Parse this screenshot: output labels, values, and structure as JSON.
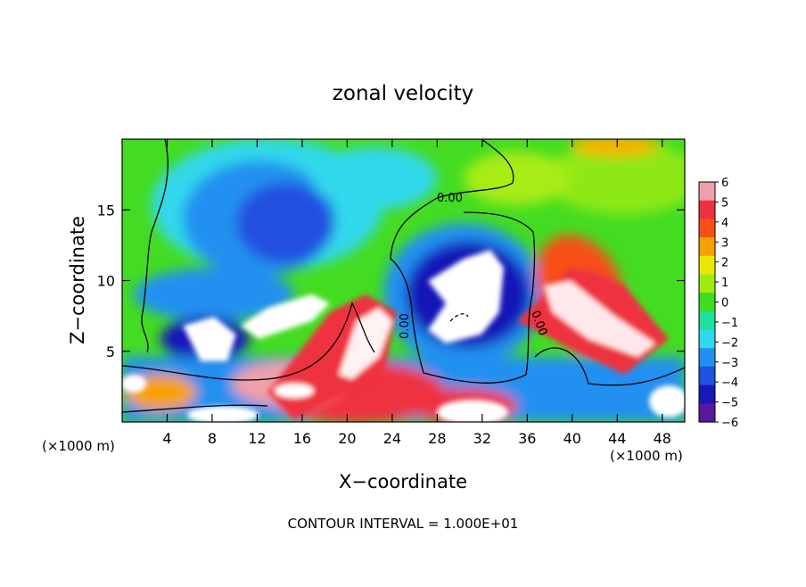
{
  "chart_data": {
    "type": "heatmap",
    "title": "zonal velocity",
    "xlabel": "X−coordinate",
    "ylabel": "Z−coordinate",
    "x_unit_note_left": "(×1000 m)",
    "x_unit_note_right": "(×1000 m)",
    "footer": "CONTOUR INTERVAL = 1.000E+01",
    "contour_label": "0.00",
    "xlim": [
      0,
      50
    ],
    "ylim": [
      0,
      20
    ],
    "x_ticks": [
      4,
      8,
      12,
      16,
      20,
      24,
      28,
      32,
      36,
      40,
      44,
      48
    ],
    "x_tick_labels": [
      "4",
      "8",
      "12",
      "16",
      "20",
      "24",
      "28",
      "32",
      "36",
      "40",
      "44",
      "48"
    ],
    "y_ticks": [
      5,
      10,
      15
    ],
    "y_tick_labels": [
      "5",
      "10",
      "15"
    ],
    "colorbar": {
      "min": -6,
      "max": 6,
      "labels": [
        "6",
        "5",
        "4",
        "3",
        "2",
        "1",
        "0",
        "−1",
        "−2",
        "−3",
        "−4",
        "−5",
        "−6"
      ],
      "colors": [
        "#f0a0a8",
        "#ee3040",
        "#f85018",
        "#f8a000",
        "#e8e800",
        "#a0ec10",
        "#40dc20",
        "#20e0a0",
        "#30d8f0",
        "#2090f0",
        "#2050e0",
        "#1818b8",
        "#5818a0"
      ]
    }
  }
}
